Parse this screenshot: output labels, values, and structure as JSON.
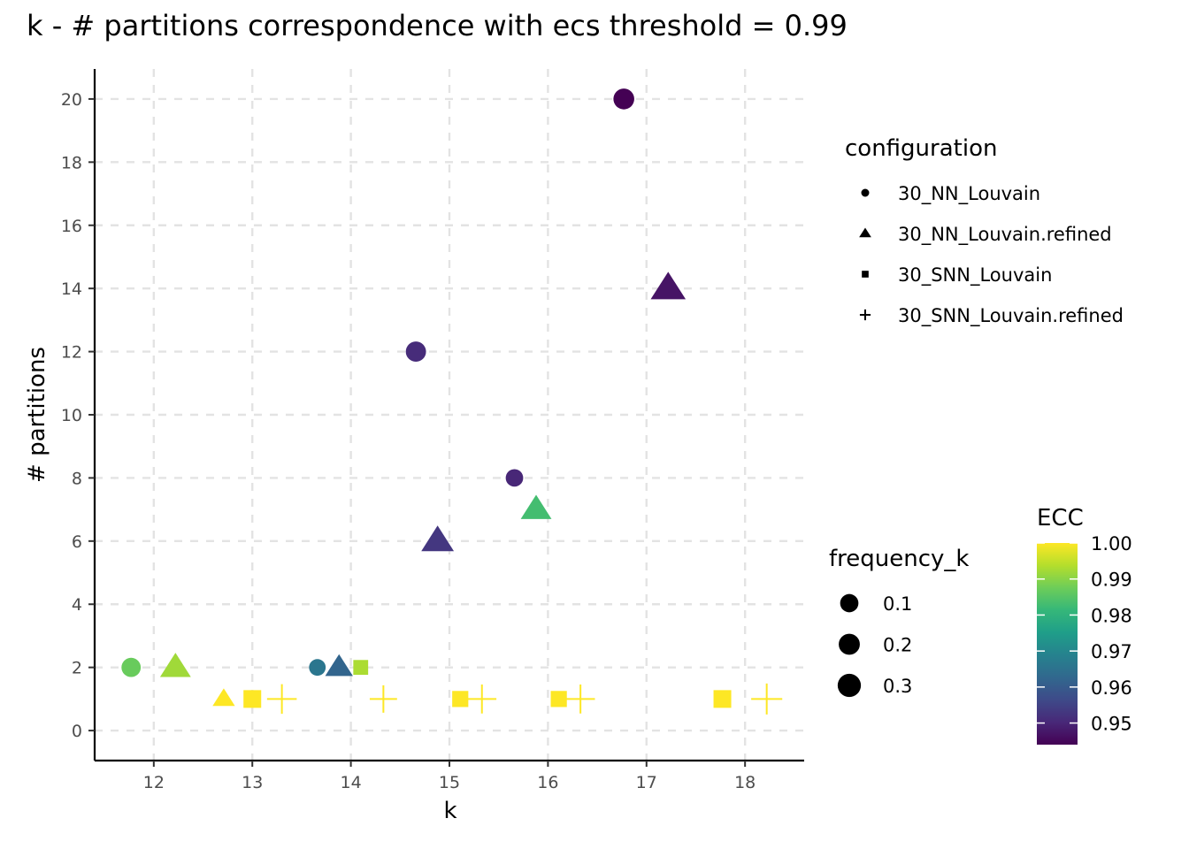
{
  "chart_data": {
    "type": "scatter",
    "title": "k - # partitions correspondence with ecs threshold = 0.99",
    "xlabel": "k",
    "ylabel": "# partitions",
    "xlim": [
      11.4,
      18.6
    ],
    "ylim": [
      -0.95,
      20.95
    ],
    "x_ticks": [
      12,
      13,
      14,
      15,
      16,
      17,
      18
    ],
    "y_ticks": [
      0,
      2,
      4,
      6,
      8,
      10,
      12,
      14,
      16,
      18,
      20
    ],
    "grid": "dashed major gridlines",
    "legend_placement": "right",
    "shape_legend": {
      "title": "configuration",
      "items": [
        {
          "label": "30_NN_Louvain",
          "shape": "circle"
        },
        {
          "label": "30_NN_Louvain.refined",
          "shape": "triangle"
        },
        {
          "label": "30_SNN_Louvain",
          "shape": "square"
        },
        {
          "label": "30_SNN_Louvain.refined",
          "shape": "plus"
        }
      ]
    },
    "size_legend": {
      "title": "frequency_k",
      "items": [
        {
          "label": "0.1",
          "value": 0.1
        },
        {
          "label": "0.2",
          "value": 0.2
        },
        {
          "label": "0.3",
          "value": 0.3
        }
      ]
    },
    "color_legend": {
      "title": "ECC",
      "range": [
        0.944,
        1.0
      ],
      "ticks": [
        {
          "label": "1.00",
          "value": 1.0
        },
        {
          "label": "0.99",
          "value": 0.99
        },
        {
          "label": "0.98",
          "value": 0.98
        },
        {
          "label": "0.97",
          "value": 0.97
        },
        {
          "label": "0.96",
          "value": 0.96
        },
        {
          "label": "0.95",
          "value": 0.95
        }
      ],
      "palette": [
        "#440154",
        "#482878",
        "#3E4A89",
        "#31688E",
        "#26828E",
        "#1F9E89",
        "#35B779",
        "#6DCD59",
        "#B4DE2C",
        "#FDE725"
      ]
    },
    "points": [
      {
        "k": 11.77,
        "partitions": 2,
        "configuration": "30_NN_Louvain",
        "frequency_k": 0.17,
        "ecc": 0.987
      },
      {
        "k": 12.22,
        "partitions": 2,
        "configuration": "30_NN_Louvain.refined",
        "frequency_k": 0.2,
        "ecc": 0.992
      },
      {
        "k": 12.71,
        "partitions": 1,
        "configuration": "30_NN_Louvain.refined",
        "frequency_k": 0.06,
        "ecc": 1.0
      },
      {
        "k": 13.0,
        "partitions": 1,
        "configuration": "30_SNN_Louvain",
        "frequency_k": 0.22,
        "ecc": 1.0
      },
      {
        "k": 13.3,
        "partitions": 1,
        "configuration": "30_SNN_Louvain.refined",
        "frequency_k": 0.26,
        "ecc": 1.0
      },
      {
        "k": 13.66,
        "partitions": 2,
        "configuration": "30_NN_Louvain",
        "frequency_k": 0.1,
        "ecc": 0.966
      },
      {
        "k": 13.88,
        "partitions": 2,
        "configuration": "30_NN_Louvain.refined",
        "frequency_k": 0.14,
        "ecc": 0.962
      },
      {
        "k": 14.1,
        "partitions": 2,
        "configuration": "30_SNN_Louvain",
        "frequency_k": 0.12,
        "ecc": 0.993
      },
      {
        "k": 14.33,
        "partitions": 1,
        "configuration": "30_SNN_Louvain.refined",
        "frequency_k": 0.2,
        "ecc": 1.0
      },
      {
        "k": 14.66,
        "partitions": 12,
        "configuration": "30_NN_Louvain",
        "frequency_k": 0.2,
        "ecc": 0.951
      },
      {
        "k": 14.88,
        "partitions": 6,
        "configuration": "30_NN_Louvain.refined",
        "frequency_k": 0.24,
        "ecc": 0.953
      },
      {
        "k": 15.11,
        "partitions": 1,
        "configuration": "30_SNN_Louvain",
        "frequency_k": 0.16,
        "ecc": 1.0
      },
      {
        "k": 15.33,
        "partitions": 1,
        "configuration": "30_SNN_Louvain.refined",
        "frequency_k": 0.24,
        "ecc": 1.0
      },
      {
        "k": 15.66,
        "partitions": 8,
        "configuration": "30_NN_Louvain",
        "frequency_k": 0.12,
        "ecc": 0.95
      },
      {
        "k": 15.88,
        "partitions": 7,
        "configuration": "30_NN_Louvain.refined",
        "frequency_k": 0.2,
        "ecc": 0.983
      },
      {
        "k": 16.11,
        "partitions": 1,
        "configuration": "30_SNN_Louvain",
        "frequency_k": 0.16,
        "ecc": 1.0
      },
      {
        "k": 16.33,
        "partitions": 1,
        "configuration": "30_SNN_Louvain.refined",
        "frequency_k": 0.24,
        "ecc": 1.0
      },
      {
        "k": 16.77,
        "partitions": 20,
        "configuration": "30_NN_Louvain",
        "frequency_k": 0.22,
        "ecc": 0.944
      },
      {
        "k": 17.22,
        "partitions": 14,
        "configuration": "30_NN_Louvain.refined",
        "frequency_k": 0.3,
        "ecc": 0.947
      },
      {
        "k": 17.77,
        "partitions": 1,
        "configuration": "30_SNN_Louvain",
        "frequency_k": 0.22,
        "ecc": 1.0
      },
      {
        "k": 18.22,
        "partitions": 1,
        "configuration": "30_SNN_Louvain.refined",
        "frequency_k": 0.3,
        "ecc": 1.0
      }
    ]
  }
}
